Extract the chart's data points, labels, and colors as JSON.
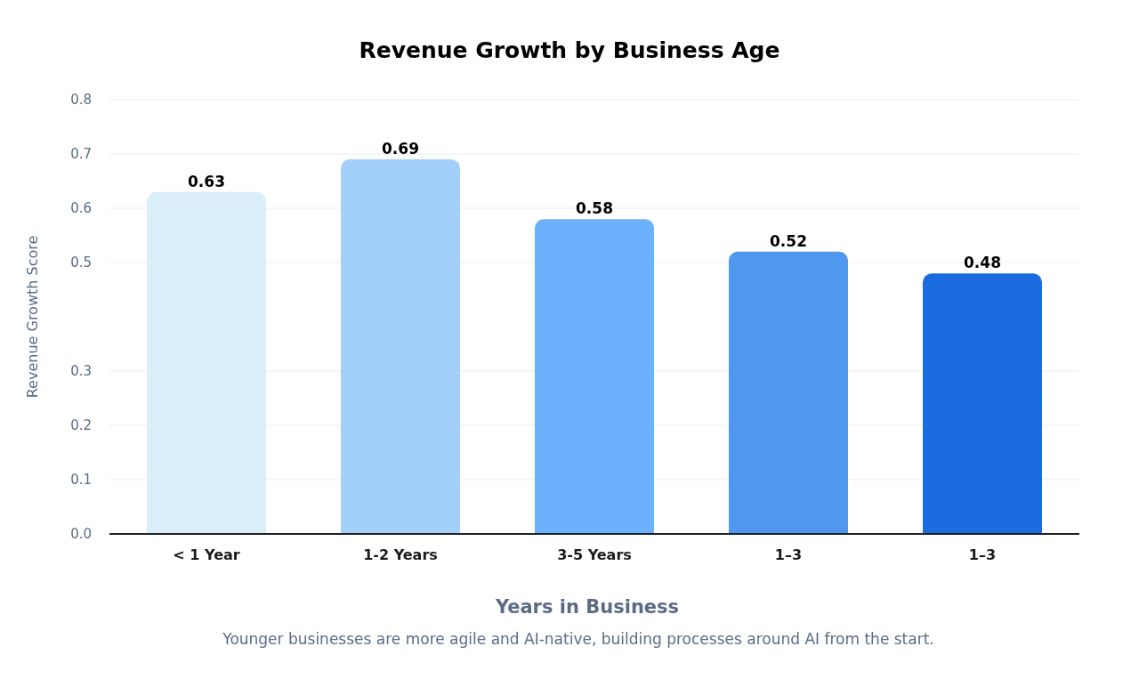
{
  "chart_data": {
    "type": "bar",
    "title": "Revenue Growth by Business Age",
    "xlabel": "Years in Business",
    "ylabel": "Revenue Growth Score",
    "annotations": [
      "Younger businesses are more agile and AI-native, building processes around AI from the start."
    ],
    "categories": [
      "< 1 Year",
      "1-2 Years",
      "3-5 Years",
      "1–3",
      "1–3"
    ],
    "values": [
      0.63,
      0.69,
      0.58,
      0.52,
      0.48
    ],
    "colors": [
      "#dbeffb",
      "#a3d0fa",
      "#6cb1fb",
      "#4f97ef",
      "#1a6ce0"
    ],
    "ylim": [
      0,
      0.8
    ],
    "yticks": [
      {
        "value": 0,
        "label": "0.0"
      },
      0.1,
      0.2,
      0.3,
      0.5,
      0.6,
      0.7,
      0.8
    ],
    "grid": "y",
    "data_labels": true
  }
}
